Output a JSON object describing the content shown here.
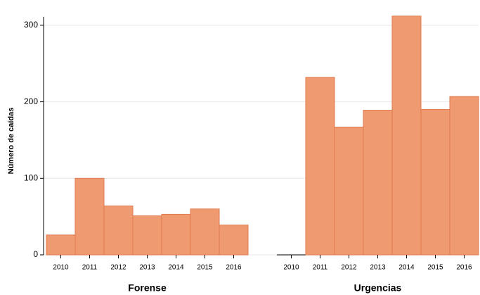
{
  "chart_data": {
    "type": "bar",
    "ylabel": "Número de caídas",
    "color": "#f09a72",
    "edge": "#e07b4e",
    "ylim": [
      0,
      300
    ],
    "yticks": [
      0,
      100,
      200,
      300
    ],
    "grid": true,
    "groups": [
      {
        "name": "Forense",
        "categories": [
          "2010",
          "2011",
          "2012",
          "2013",
          "2014",
          "2015",
          "2016"
        ],
        "values": [
          26,
          100,
          64,
          51,
          53,
          60,
          39
        ]
      },
      {
        "name": "Urgencias",
        "categories": [
          "2010",
          "2011",
          "2012",
          "2013",
          "2014",
          "2015",
          "2016"
        ],
        "values": [
          0,
          232,
          167,
          189,
          312,
          190,
          207
        ]
      }
    ]
  }
}
